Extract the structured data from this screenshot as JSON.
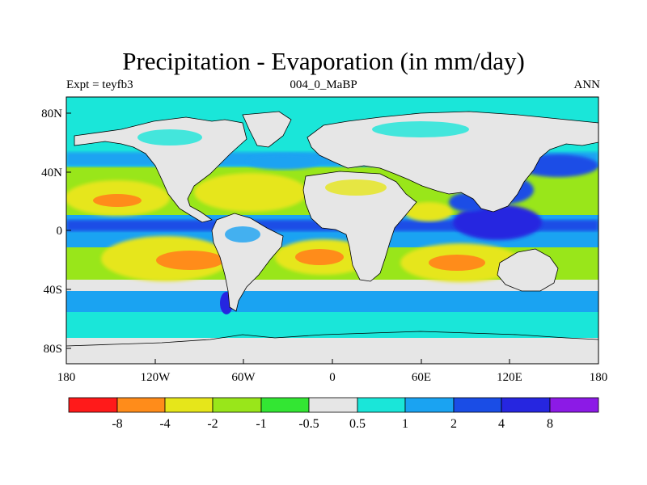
{
  "title": "Precipitation - Evaporation (in mm/day)",
  "subtitle_left": "Expt = teyfb3",
  "subtitle_center": "004_0_MaBP",
  "subtitle_right": "ANN",
  "axes": {
    "x_ticks": [
      "180",
      "120W",
      "60W",
      "0",
      "60E",
      "120E",
      "180"
    ],
    "y_ticks": [
      "80N",
      "40N",
      "0",
      "40S",
      "80S"
    ],
    "lon_range": [
      -180,
      180
    ],
    "lat_range": [
      -90,
      90
    ]
  },
  "colorbar": {
    "labels": [
      "-8",
      "-4",
      "-2",
      "-1",
      "-0.5",
      "0.5",
      "1",
      "2",
      "4",
      "8"
    ],
    "colors": [
      "#ff1a1a",
      "#ff8c1a",
      "#e6e61a",
      "#99e61a",
      "#33e633",
      "#e6e6e6",
      "#1ae6d9",
      "#1aa3f2",
      "#1a4de6",
      "#2626e0",
      "#8c1ae6"
    ]
  }
}
